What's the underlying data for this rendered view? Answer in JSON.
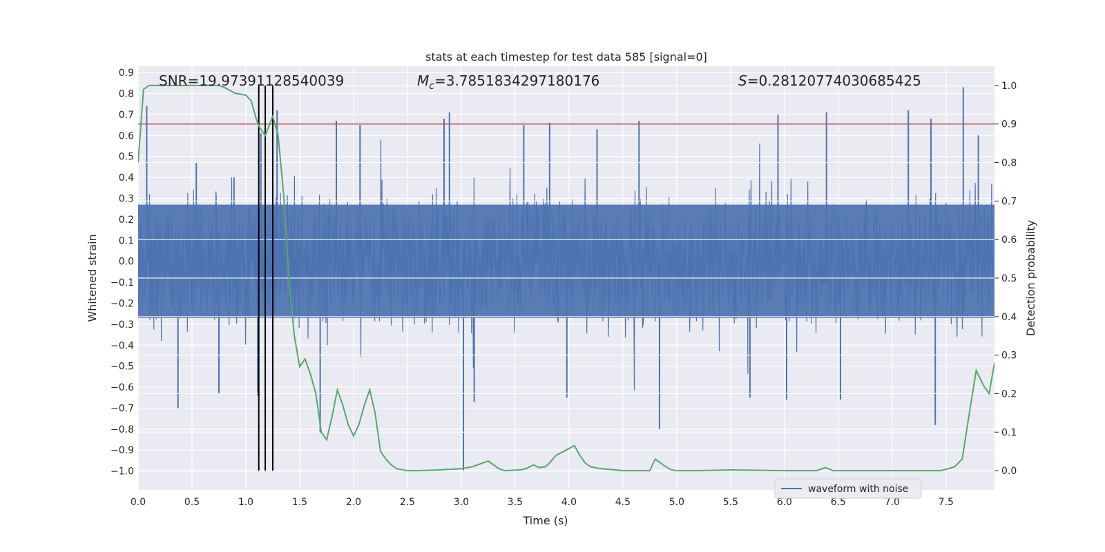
{
  "chart_data": {
    "type": "line",
    "title": "stats at each timestep for test data 585 [signal=0]",
    "xlabel": "Time (s)",
    "ylabel": "Whitened strain",
    "y2label": "Detection probability",
    "xlim": [
      0.0,
      7.95
    ],
    "ylim": [
      -1.09,
      0.93
    ],
    "y2lim": [
      -0.05,
      1.05
    ],
    "xticks": [
      0.0,
      0.5,
      1.0,
      1.5,
      2.0,
      2.5,
      3.0,
      3.5,
      4.0,
      4.5,
      5.0,
      5.5,
      6.0,
      6.5,
      7.0,
      7.5
    ],
    "xtick_labels": [
      "0.0",
      "0.5",
      "1.0",
      "1.5",
      "2.0",
      "2.5",
      "3.0",
      "3.5",
      "4.0",
      "4.5",
      "5.0",
      "5.5",
      "6.0",
      "6.5",
      "7.0",
      "7.5"
    ],
    "yticks": [
      -1.0,
      -0.9,
      -0.8,
      -0.7,
      -0.6,
      -0.5,
      -0.4,
      -0.3,
      -0.2,
      -0.1,
      0.0,
      0.1,
      0.2,
      0.3,
      0.4,
      0.5,
      0.6,
      0.7,
      0.8,
      0.9
    ],
    "ytick_labels": [
      "−1.0",
      "−0.9",
      "−0.8",
      "−0.7",
      "−0.6",
      "−0.5",
      "−0.4",
      "−0.3",
      "−0.2",
      "−0.1",
      "0.0",
      "0.1",
      "0.2",
      "0.3",
      "0.4",
      "0.5",
      "0.6",
      "0.7",
      "0.8",
      "0.9"
    ],
    "y2ticks": [
      0.0,
      0.1,
      0.2,
      0.3,
      0.4,
      0.5,
      0.6,
      0.7,
      0.8,
      0.9,
      1.0
    ],
    "y2tick_labels": [
      "0.0",
      "0.1",
      "0.2",
      "0.3",
      "0.4",
      "0.5",
      "0.6",
      "0.7",
      "0.8",
      "0.9",
      "1.0"
    ],
    "annotations": {
      "snr": "SNR=19.97391128540039",
      "mc_symbol": "M",
      "mc_sub": "c",
      "mc_value": "=3.7851834297180176",
      "s_symbol": "S",
      "s_value": "=0.28120774030685425"
    },
    "legend": {
      "placement": "lower-right",
      "label": "waveform with noise"
    },
    "threshold": {
      "y2": 0.9,
      "color": "#c44e52"
    },
    "vlines": [
      1.12,
      1.18,
      1.25
    ],
    "waveform": {
      "name": "waveform with noise",
      "color": "#4c72b0",
      "duration": 7.95,
      "typical_amplitude": 0.27,
      "peaks": [
        {
          "t": 0.08,
          "v": 0.74
        },
        {
          "t": 0.54,
          "v": 0.47
        },
        {
          "t": 0.89,
          "v": 0.4
        },
        {
          "t": 1.14,
          "v": 0.61
        },
        {
          "t": 1.29,
          "v": 0.72
        },
        {
          "t": 1.84,
          "v": 0.67
        },
        {
          "t": 2.06,
          "v": 0.65
        },
        {
          "t": 2.84,
          "v": 0.68
        },
        {
          "t": 2.89,
          "v": 0.71
        },
        {
          "t": 3.58,
          "v": 0.65
        },
        {
          "t": 3.82,
          "v": 0.66
        },
        {
          "t": 4.26,
          "v": 0.63
        },
        {
          "t": 4.65,
          "v": 0.67
        },
        {
          "t": 5.94,
          "v": 0.7
        },
        {
          "t": 6.39,
          "v": 0.71
        },
        {
          "t": 7.15,
          "v": 0.72
        },
        {
          "t": 7.36,
          "v": 0.68
        },
        {
          "t": 7.66,
          "v": 0.83
        },
        {
          "t": 7.8,
          "v": 0.6
        }
      ],
      "troughs": [
        {
          "t": 0.37,
          "v": -0.7
        },
        {
          "t": 0.75,
          "v": -0.63
        },
        {
          "t": 1.11,
          "v": -0.64
        },
        {
          "t": 1.69,
          "v": -0.82
        },
        {
          "t": 3.02,
          "v": -1.0
        },
        {
          "t": 3.12,
          "v": -0.67
        },
        {
          "t": 3.98,
          "v": -0.65
        },
        {
          "t": 4.84,
          "v": -0.8
        },
        {
          "t": 5.68,
          "v": -0.65
        },
        {
          "t": 6.02,
          "v": -0.66
        },
        {
          "t": 6.52,
          "v": -0.66
        },
        {
          "t": 7.4,
          "v": -0.78
        }
      ]
    },
    "probability": {
      "name": "Detection probability",
      "color": "#55a868",
      "x": [
        0.0,
        0.05,
        0.1,
        0.2,
        0.4,
        0.6,
        0.75,
        0.8,
        0.9,
        1.0,
        1.05,
        1.1,
        1.13,
        1.18,
        1.25,
        1.3,
        1.35,
        1.4,
        1.45,
        1.5,
        1.55,
        1.6,
        1.65,
        1.7,
        1.75,
        1.8,
        1.85,
        1.9,
        1.95,
        2.0,
        2.05,
        2.1,
        2.15,
        2.2,
        2.25,
        2.3,
        2.35,
        2.4,
        2.5,
        2.6,
        2.8,
        3.0,
        3.1,
        3.25,
        3.35,
        3.4,
        3.55,
        3.6,
        3.67,
        3.72,
        3.78,
        3.82,
        3.88,
        3.95,
        4.05,
        4.1,
        4.15,
        4.2,
        4.3,
        4.5,
        4.75,
        4.8,
        4.85,
        4.9,
        4.95,
        5.0,
        5.2,
        5.5,
        6.0,
        6.3,
        6.38,
        6.45,
        6.7,
        7.0,
        7.3,
        7.45,
        7.52,
        7.58,
        7.65,
        7.7,
        7.78,
        7.85,
        7.9,
        7.95
      ],
      "y": [
        0.8,
        0.99,
        1.0,
        1.0,
        1.0,
        1.0,
        1.0,
        0.995,
        0.98,
        0.975,
        0.96,
        0.91,
        0.89,
        0.87,
        0.92,
        0.87,
        0.72,
        0.5,
        0.35,
        0.27,
        0.29,
        0.25,
        0.2,
        0.1,
        0.08,
        0.14,
        0.21,
        0.17,
        0.12,
        0.09,
        0.12,
        0.17,
        0.21,
        0.15,
        0.05,
        0.03,
        0.015,
        0.005,
        0.0,
        0.0,
        0.002,
        0.005,
        0.01,
        0.025,
        0.005,
        0.0,
        0.002,
        0.005,
        0.015,
        0.008,
        0.01,
        0.02,
        0.04,
        0.05,
        0.065,
        0.04,
        0.02,
        0.01,
        0.005,
        0.0,
        0.0,
        0.03,
        0.02,
        0.01,
        0.002,
        0.0,
        0.0,
        0.002,
        0.0,
        0.0,
        0.008,
        0.0,
        0.0,
        0.0,
        0.0,
        0.0,
        0.005,
        0.01,
        0.03,
        0.12,
        0.26,
        0.22,
        0.2,
        0.28
      ]
    }
  }
}
